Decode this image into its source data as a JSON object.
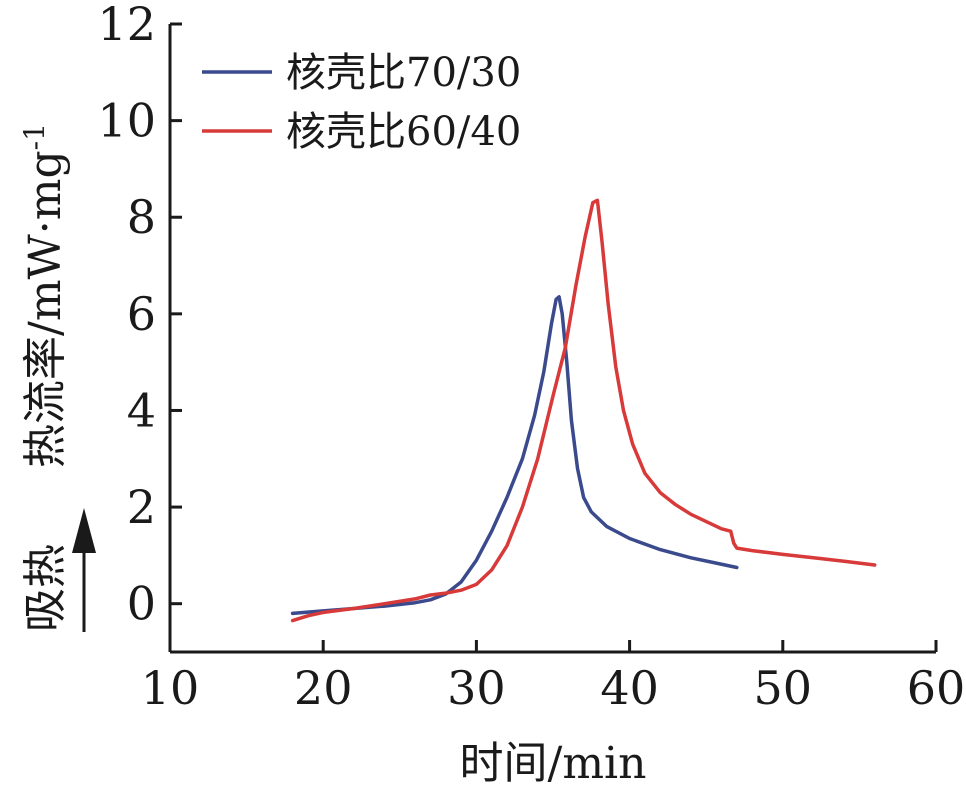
{
  "chart_data": {
    "type": "line",
    "xlabel": "时间/min",
    "ylabel": "热流率/mW·mg",
    "ylabel_superscript": "-1",
    "ylabel_note": "吸热",
    "xlim": [
      10,
      60
    ],
    "ylim": [
      -1,
      12
    ],
    "xticks": [
      10,
      20,
      30,
      40,
      50,
      60
    ],
    "yticks": [
      0,
      2,
      4,
      6,
      8,
      10,
      12
    ],
    "grid": false,
    "legend_position": "top-left",
    "series": [
      {
        "name": "核壳比70/30",
        "color": "#3a4a8c",
        "points": [
          [
            18,
            -0.2
          ],
          [
            20,
            -0.15
          ],
          [
            22,
            -0.1
          ],
          [
            24,
            -0.05
          ],
          [
            26,
            0.02
          ],
          [
            27,
            0.08
          ],
          [
            28,
            0.2
          ],
          [
            29,
            0.45
          ],
          [
            30,
            0.9
          ],
          [
            31,
            1.5
          ],
          [
            32,
            2.2
          ],
          [
            33,
            3.0
          ],
          [
            33.8,
            3.9
          ],
          [
            34.4,
            4.8
          ],
          [
            34.9,
            5.8
          ],
          [
            35.2,
            6.3
          ],
          [
            35.4,
            6.35
          ],
          [
            35.6,
            6.0
          ],
          [
            35.9,
            5.0
          ],
          [
            36.2,
            3.8
          ],
          [
            36.6,
            2.8
          ],
          [
            37,
            2.2
          ],
          [
            37.5,
            1.9
          ],
          [
            38.5,
            1.6
          ],
          [
            40,
            1.35
          ],
          [
            42,
            1.12
          ],
          [
            44,
            0.95
          ],
          [
            45.5,
            0.85
          ],
          [
            47,
            0.75
          ]
        ]
      },
      {
        "name": "核壳比60/40",
        "color": "#d83a3a",
        "points": [
          [
            18,
            -0.35
          ],
          [
            19,
            -0.25
          ],
          [
            20,
            -0.18
          ],
          [
            22,
            -0.1
          ],
          [
            24,
            0.0
          ],
          [
            26,
            0.1
          ],
          [
            27,
            0.18
          ],
          [
            28,
            0.22
          ],
          [
            29,
            0.28
          ],
          [
            30,
            0.4
          ],
          [
            31,
            0.7
          ],
          [
            32,
            1.2
          ],
          [
            33,
            2.0
          ],
          [
            34,
            3.0
          ],
          [
            35,
            4.3
          ],
          [
            35.8,
            5.3
          ],
          [
            36.5,
            6.6
          ],
          [
            37.1,
            7.6
          ],
          [
            37.6,
            8.3
          ],
          [
            37.9,
            8.35
          ],
          [
            38.2,
            7.5
          ],
          [
            38.6,
            6.2
          ],
          [
            39.1,
            4.9
          ],
          [
            39.6,
            4.0
          ],
          [
            40.2,
            3.3
          ],
          [
            41,
            2.7
          ],
          [
            42,
            2.3
          ],
          [
            43,
            2.05
          ],
          [
            44,
            1.85
          ],
          [
            45,
            1.7
          ],
          [
            46,
            1.55
          ],
          [
            46.6,
            1.5
          ],
          [
            46.8,
            1.25
          ],
          [
            47,
            1.15
          ],
          [
            48,
            1.1
          ],
          [
            50,
            1.02
          ],
          [
            52,
            0.95
          ],
          [
            54,
            0.88
          ],
          [
            56,
            0.8
          ]
        ]
      }
    ]
  }
}
